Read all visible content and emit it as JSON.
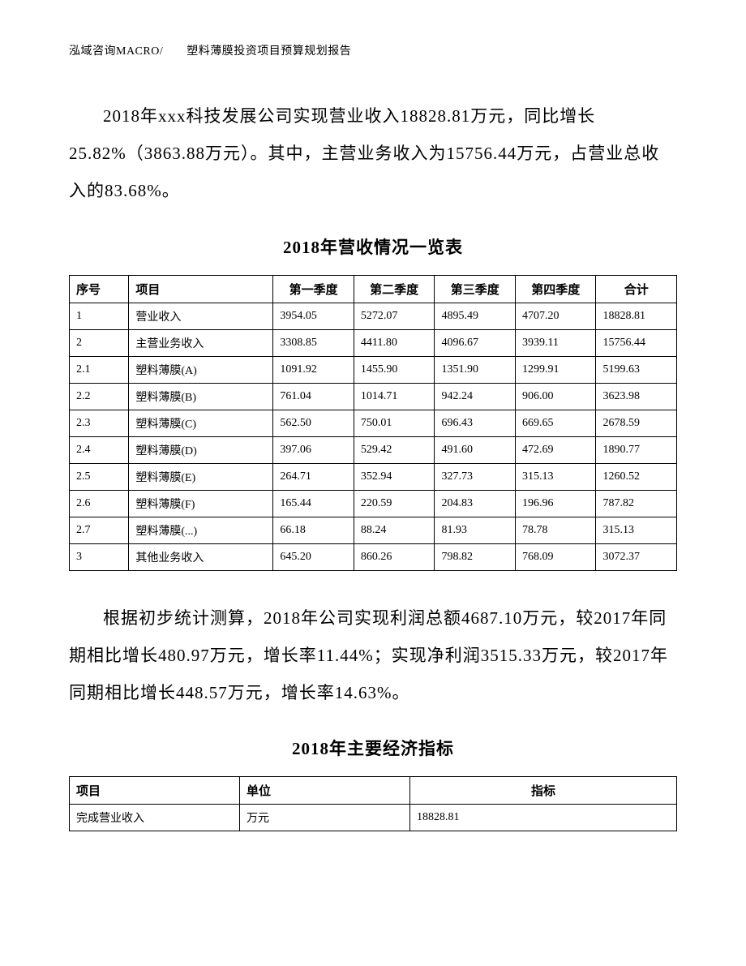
{
  "header": "泓域咨询MACRO/　　塑料薄膜投资项目预算规划报告",
  "para1": "2018年xxx科技发展公司实现营业收入18828.81万元，同比增长25.82%（3863.88万元）。其中，主营业务收入为15756.44万元，占营业总收入的83.68%。",
  "table1": {
    "title": "2018年营收情况一览表",
    "headers": {
      "seq": "序号",
      "item": "项目",
      "q1": "第一季度",
      "q2": "第二季度",
      "q3": "第三季度",
      "q4": "第四季度",
      "total": "合计"
    },
    "rows": [
      {
        "seq": "1",
        "item": "营业收入",
        "q1": "3954.05",
        "q2": "5272.07",
        "q3": "4895.49",
        "q4": "4707.20",
        "total": "18828.81"
      },
      {
        "seq": "2",
        "item": "主营业务收入",
        "q1": "3308.85",
        "q2": "4411.80",
        "q3": "4096.67",
        "q4": "3939.11",
        "total": "15756.44"
      },
      {
        "seq": "2.1",
        "item": "塑料薄膜(A)",
        "q1": "1091.92",
        "q2": "1455.90",
        "q3": "1351.90",
        "q4": "1299.91",
        "total": "5199.63"
      },
      {
        "seq": "2.2",
        "item": "塑料薄膜(B)",
        "q1": "761.04",
        "q2": "1014.71",
        "q3": "942.24",
        "q4": "906.00",
        "total": "3623.98"
      },
      {
        "seq": "2.3",
        "item": "塑料薄膜(C)",
        "q1": "562.50",
        "q2": "750.01",
        "q3": "696.43",
        "q4": "669.65",
        "total": "2678.59"
      },
      {
        "seq": "2.4",
        "item": "塑料薄膜(D)",
        "q1": "397.06",
        "q2": "529.42",
        "q3": "491.60",
        "q4": "472.69",
        "total": "1890.77"
      },
      {
        "seq": "2.5",
        "item": "塑料薄膜(E)",
        "q1": "264.71",
        "q2": "352.94",
        "q3": "327.73",
        "q4": "315.13",
        "total": "1260.52"
      },
      {
        "seq": "2.6",
        "item": "塑料薄膜(F)",
        "q1": "165.44",
        "q2": "220.59",
        "q3": "204.83",
        "q4": "196.96",
        "total": "787.82"
      },
      {
        "seq": "2.7",
        "item": "塑料薄膜(...)",
        "q1": "66.18",
        "q2": "88.24",
        "q3": "81.93",
        "q4": "78.78",
        "total": "315.13"
      },
      {
        "seq": "3",
        "item": "其他业务收入",
        "q1": "645.20",
        "q2": "860.26",
        "q3": "798.82",
        "q4": "768.09",
        "total": "3072.37"
      }
    ]
  },
  "para2": "根据初步统计测算，2018年公司实现利润总额4687.10万元，较2017年同期相比增长480.97万元，增长率11.44%；实现净利润3515.33万元，较2017年同期相比增长448.57万元，增长率14.63%。",
  "table2": {
    "title": "2018年主要经济指标",
    "headers": {
      "item": "项目",
      "unit": "单位",
      "indicator": "指标"
    },
    "rows": [
      {
        "item": "完成营业收入",
        "unit": "万元",
        "indicator": "18828.81"
      }
    ]
  }
}
